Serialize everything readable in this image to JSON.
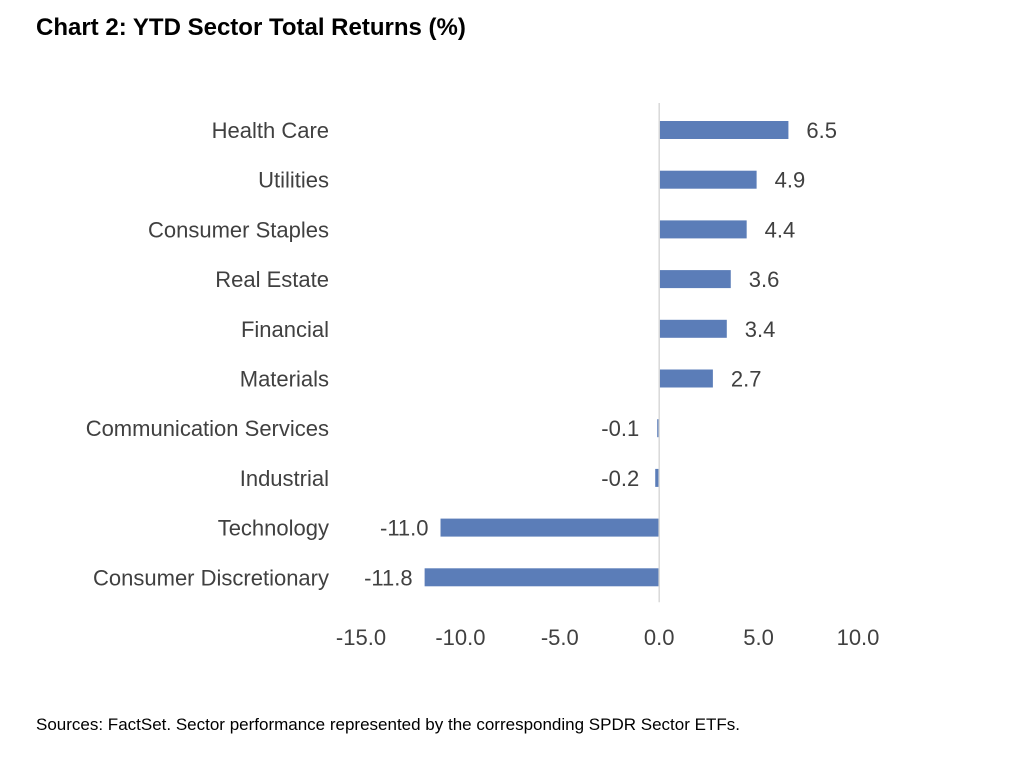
{
  "title": "Chart 2:  YTD Sector Total Returns (%)",
  "source_note": "Sources: FactSet.  Sector performance represented by the corresponding SPDR Sector ETFs.",
  "chart_data": {
    "type": "bar",
    "orientation": "horizontal",
    "title": "Chart 2:  YTD Sector Total Returns (%)",
    "categories": [
      "Health Care",
      "Utilities",
      "Consumer Staples",
      "Real Estate",
      "Financial",
      "Materials",
      "Communication Services",
      "Industrial",
      "Technology",
      "Consumer Discretionary"
    ],
    "values": [
      6.5,
      4.9,
      4.4,
      3.6,
      3.4,
      2.7,
      -0.1,
      -0.2,
      -11.0,
      -11.8
    ],
    "value_labels": [
      "6.5",
      "4.9",
      "4.4",
      "3.6",
      "3.4",
      "2.7",
      "-0.1",
      "-0.2",
      "-11.0",
      "-11.8"
    ],
    "xlim": [
      -15,
      10
    ],
    "x_ticks": [
      -15,
      -10,
      -5,
      0,
      5,
      10
    ],
    "x_tick_labels": [
      "-15.0",
      "-10.0",
      "-5.0",
      "0.0",
      "5.0",
      "10.0"
    ],
    "bar_color": "#5B7DB8",
    "grid": false,
    "legend": "none"
  }
}
